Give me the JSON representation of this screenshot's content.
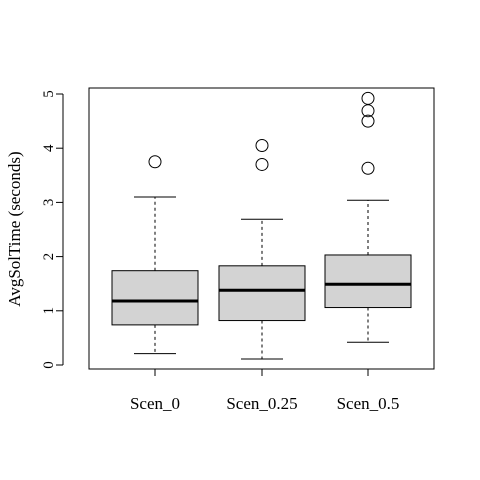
{
  "chart_data": {
    "type": "boxplot",
    "title": "",
    "xlabel": "",
    "ylabel": "AvgSolTime (seconds)",
    "ylim": [
      0,
      5
    ],
    "yticks": [
      "0",
      "1",
      "2",
      "3",
      "4",
      "5"
    ],
    "categories": [
      "Scen_0",
      "Scen_0.25",
      "Scen_0.5"
    ],
    "box_fill": "#d3d3d3",
    "series": [
      {
        "category": "Scen_0",
        "whisker_low": 0.21,
        "q1": 0.74,
        "median": 1.18,
        "q3": 1.74,
        "whisker_high": 3.1,
        "outliers": [
          3.75
        ]
      },
      {
        "category": "Scen_0.25",
        "whisker_low": 0.11,
        "q1": 0.82,
        "median": 1.38,
        "q3": 1.83,
        "whisker_high": 2.69,
        "outliers": [
          3.7,
          4.05
        ]
      },
      {
        "category": "Scen_0.5",
        "whisker_low": 0.42,
        "q1": 1.06,
        "median": 1.49,
        "q3": 2.03,
        "whisker_high": 3.04,
        "outliers": [
          3.63,
          4.5,
          4.69,
          4.92
        ]
      }
    ]
  }
}
